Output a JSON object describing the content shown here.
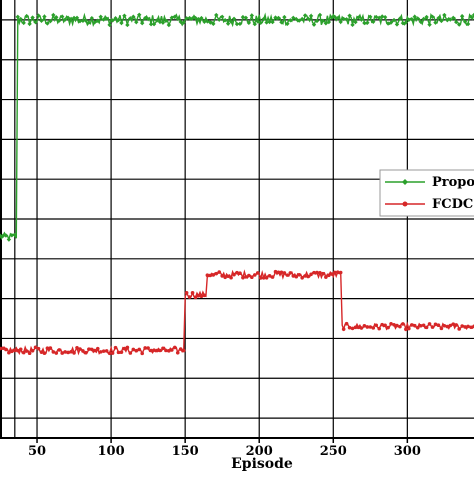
{
  "chart_data": {
    "type": "line",
    "title": "",
    "xlabel": "Episode",
    "ylabel": "",
    "xlim": [
      25,
      345
    ],
    "ylim": [
      0,
      11
    ],
    "x_ticks": [
      50,
      100,
      150,
      200,
      250,
      300
    ],
    "grid": true,
    "legend_position": "right",
    "series": [
      {
        "name": "Propo",
        "color": "#2ca02c",
        "marker": "diamond",
        "segments": [
          {
            "x_start": 25,
            "x_end": 36,
            "level": 5.05,
            "noise": 0.1
          },
          {
            "x_start": 37,
            "x_end": 345,
            "level": 10.5,
            "noise": 0.13
          }
        ]
      },
      {
        "name": "FCDC",
        "color": "#d62728",
        "marker": "circle",
        "segments": [
          {
            "x_start": 25,
            "x_end": 149,
            "level": 2.2,
            "noise": 0.08
          },
          {
            "x_start": 150,
            "x_end": 164,
            "level": 3.6,
            "noise": 0.07
          },
          {
            "x_start": 165,
            "x_end": 255,
            "level": 4.1,
            "noise": 0.08
          },
          {
            "x_start": 256,
            "x_end": 345,
            "level": 2.8,
            "noise": 0.07
          }
        ]
      }
    ]
  }
}
